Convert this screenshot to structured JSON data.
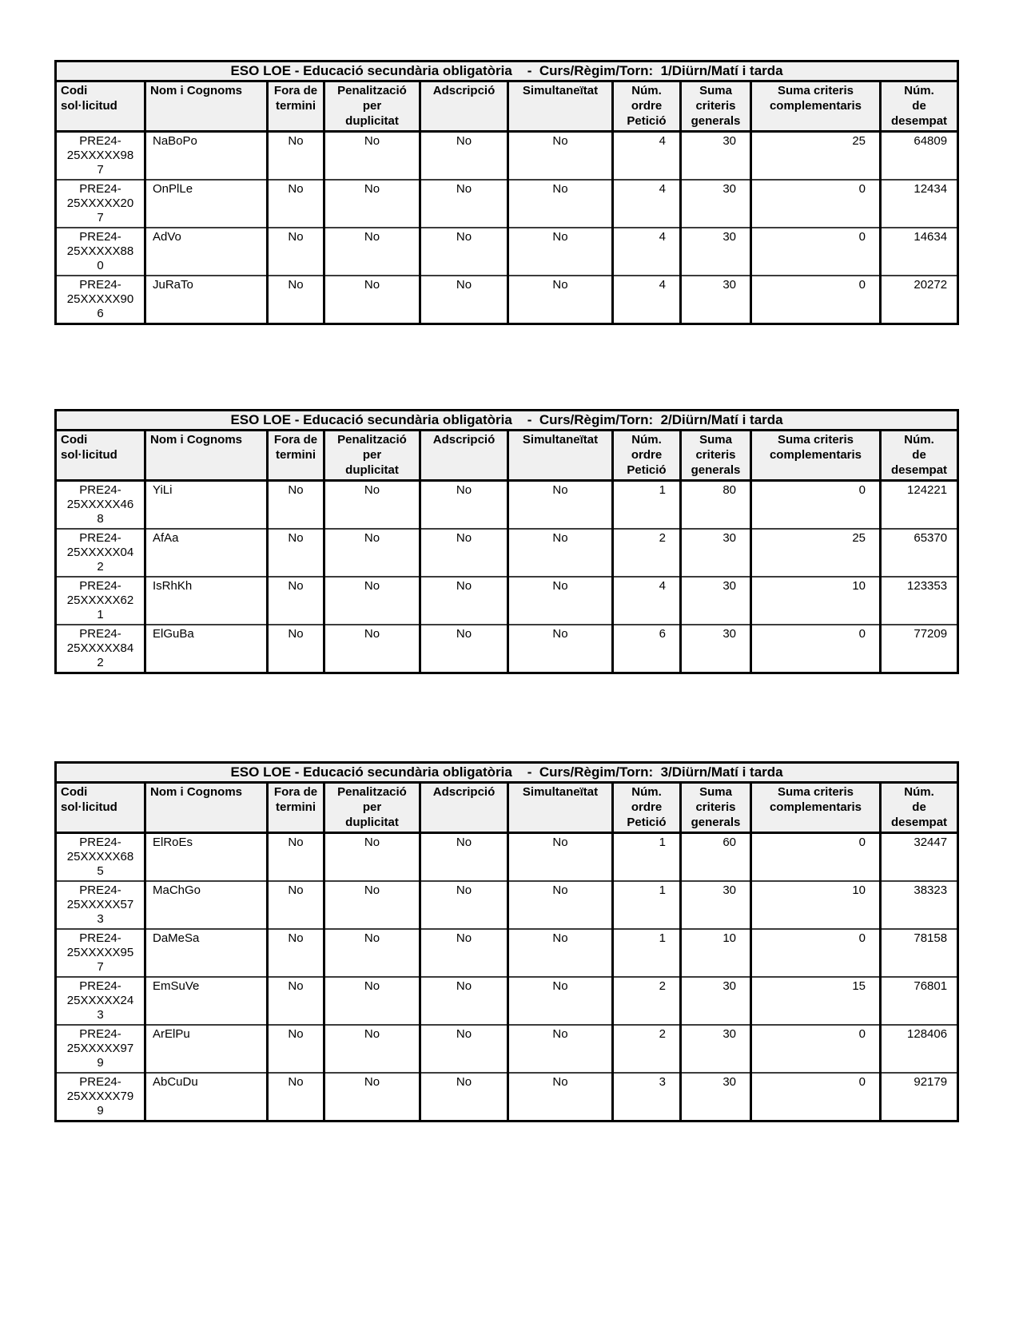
{
  "document": {
    "background": "#ffffff",
    "header_bg": "#f0f0f0",
    "border_color": "#000000",
    "row_divider_color": "#3c3c3c"
  },
  "columns": {
    "headers": [
      "Codi\nsol·licitud",
      "Nom i Cognoms",
      "Fora de\ntermini",
      "Penalització\nper\nduplicitat",
      "Adscripció",
      "Simultaneïtat",
      "Núm.\nordre\nPetició",
      "Suma\ncriteris\ngenerals",
      "Suma criteris\ncomplementaris",
      "Núm.\nde\ndesempat"
    ]
  },
  "tables": [
    {
      "title": "ESO LOE - Educació secundària obligatòria    -  Curs/Règim/Torn:  1/Diürn/Matí i tarda",
      "rows": [
        [
          "PRE24-25XXXXX987",
          "NaBoPo",
          "No",
          "No",
          "No",
          "No",
          "4",
          "30",
          "25",
          "64809"
        ],
        [
          "PRE24-25XXXXX207",
          "OnPlLe",
          "No",
          "No",
          "No",
          "No",
          "4",
          "30",
          "0",
          "12434"
        ],
        [
          "PRE24-25XXXXX880",
          "AdVo",
          "No",
          "No",
          "No",
          "No",
          "4",
          "30",
          "0",
          "14634"
        ],
        [
          "PRE24-25XXXXX906",
          "JuRaTo",
          "No",
          "No",
          "No",
          "No",
          "4",
          "30",
          "0",
          "20272"
        ]
      ]
    },
    {
      "title": "ESO LOE - Educació secundària obligatòria    -  Curs/Règim/Torn:  2/Diürn/Matí i tarda",
      "rows": [
        [
          "PRE24-25XXXXX468",
          "YiLi",
          "No",
          "No",
          "No",
          "No",
          "1",
          "80",
          "0",
          "124221"
        ],
        [
          "PRE24-25XXXXX042",
          "AfAa",
          "No",
          "No",
          "No",
          "No",
          "2",
          "30",
          "25",
          "65370"
        ],
        [
          "PRE24-25XXXXX621",
          "IsRhKh",
          "No",
          "No",
          "No",
          "No",
          "4",
          "30",
          "10",
          "123353"
        ],
        [
          "PRE24-25XXXXX842",
          "ElGuBa",
          "No",
          "No",
          "No",
          "No",
          "6",
          "30",
          "0",
          "77209"
        ]
      ]
    },
    {
      "title": "ESO LOE - Educació secundària obligatòria    -  Curs/Règim/Torn:  3/Diürn/Matí i tarda",
      "rows": [
        [
          "PRE24-25XXXXX685",
          "ElRoEs",
          "No",
          "No",
          "No",
          "No",
          "1",
          "60",
          "0",
          "32447"
        ],
        [
          "PRE24-25XXXXX573",
          "MaChGo",
          "No",
          "No",
          "No",
          "No",
          "1",
          "30",
          "10",
          "38323"
        ],
        [
          "PRE24-25XXXXX957",
          "DaMeSa",
          "No",
          "No",
          "No",
          "No",
          "1",
          "10",
          "0",
          "78158"
        ],
        [
          "PRE24-25XXXXX243",
          "EmSuVe",
          "No",
          "No",
          "No",
          "No",
          "2",
          "30",
          "15",
          "76801"
        ],
        [
          "PRE24-25XXXXX979",
          "ArElPu",
          "No",
          "No",
          "No",
          "No",
          "2",
          "30",
          "0",
          "128406"
        ],
        [
          "PRE24-25XXXXX799",
          "AbCuDu",
          "No",
          "No",
          "No",
          "No",
          "3",
          "30",
          "0",
          "92179"
        ]
      ]
    }
  ]
}
